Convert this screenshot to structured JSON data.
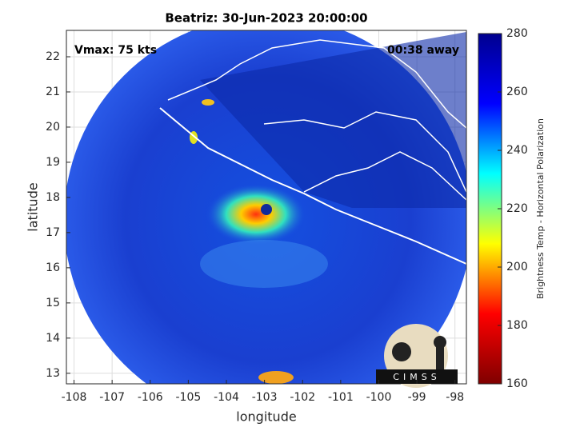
{
  "chart_data": {
    "type": "map",
    "title": "Beatriz: 30-Jun-2023 20:00:00",
    "xlabel": "longitude",
    "ylabel": "latitude",
    "annotations": [
      "Vmax: 75 kts",
      "00:38 away"
    ],
    "xlim": [
      -108.2,
      -97.7
    ],
    "xticks": [
      -108,
      -107,
      -106,
      -105,
      -104,
      -103,
      -102,
      -101,
      -100,
      -99,
      -98
    ],
    "ylim": [
      12.7,
      22.75
    ],
    "yticks": [
      13,
      14,
      15,
      16,
      17,
      18,
      19,
      20,
      21,
      22
    ],
    "grid": true,
    "colorbar": {
      "label": "Brightness Temp - Horizontal Polarization",
      "lim": [
        160,
        280
      ],
      "ticks": [
        160,
        180,
        200,
        220,
        240,
        260,
        280
      ],
      "colors": [
        "#7f0000",
        "#ff0000",
        "#ffff00",
        "#00ffff",
        "#0000ff",
        "#00008f"
      ]
    },
    "logo": "CIMSS"
  }
}
